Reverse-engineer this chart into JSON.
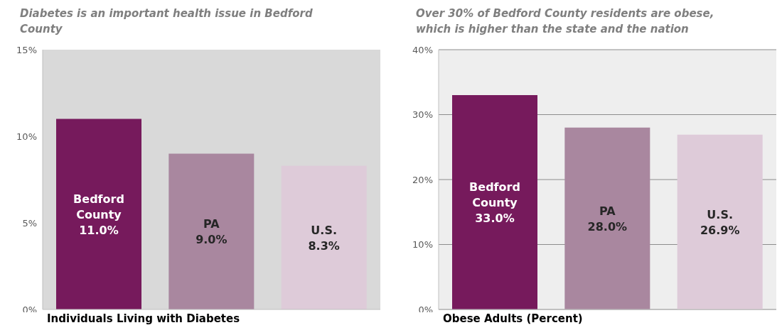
{
  "chart_data": [
    {
      "type": "bar",
      "title": "Diabetes is an important health issue in Bedford County",
      "xlabel": "Individuals Living with Diabetes",
      "categories": [
        "Bedford County",
        "PA",
        "U.S."
      ],
      "values": [
        11.0,
        9.0,
        8.3
      ],
      "colors": [
        "#761a5c",
        "#a9879f",
        "#decbd9"
      ],
      "value_labels": [
        "11.0%",
        "9.0%",
        "8.3%"
      ],
      "ylim": [
        0,
        15
      ],
      "yticks": [
        {
          "value": 0,
          "label": "0%"
        },
        {
          "value": 5,
          "label": "5%"
        },
        {
          "value": 10,
          "label": "10%"
        },
        {
          "value": 15,
          "label": "15%"
        }
      ],
      "grid": false
    },
    {
      "type": "bar",
      "title": "Over 30% of Bedford County residents are obese, which is higher than the state and the nation",
      "xlabel": "Obese Adults (Percent)",
      "categories": [
        "Bedford County",
        "PA",
        "U.S."
      ],
      "values": [
        33.0,
        28.0,
        26.9
      ],
      "colors": [
        "#761a5c",
        "#a9879f",
        "#decbd9"
      ],
      "value_labels": [
        "33.0%",
        "28.0%",
        "26.9%"
      ],
      "ylim": [
        0,
        40
      ],
      "yticks": [
        {
          "value": 0,
          "label": "0%"
        },
        {
          "value": 10,
          "label": "10%"
        },
        {
          "value": 20,
          "label": "20%"
        },
        {
          "value": 30,
          "label": "30%"
        },
        {
          "value": 40,
          "label": "40%"
        }
      ],
      "grid": "y"
    }
  ]
}
